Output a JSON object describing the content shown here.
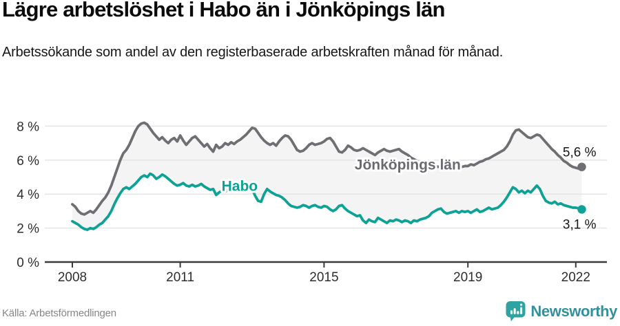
{
  "header": {
    "title": "Lägre arbetslöshet i Habo än i Jönköpings län",
    "subtitle": "Arbetssökande som andel av den registerbaserade arbetskraften månad för månad."
  },
  "footer": {
    "source": "Källa: Arbetsförmedlingen",
    "brand": "Newsworthy",
    "brand_icon": "newsworthy-bubble-bar-chart-icon",
    "brand_icon_color": "#2fa2a2",
    "brand_text_color": "#33919c"
  },
  "chart_data": {
    "type": "line",
    "title": "Lägre arbetslöshet i Habo än i Jönköpings län",
    "subtitle": "Arbetssökande som andel av den registerbaserade arbetskraften månad för månad.",
    "x_unit": "month",
    "x_range": {
      "start": "2008-01",
      "end": "2022-03"
    },
    "start_year": 2008,
    "ylim": [
      0,
      8.6
    ],
    "grid": "horizontal",
    "gridline_color": "#e2e2e2",
    "axis_color": "#3a3a3a",
    "fill_between_color": "#f4f4f4",
    "x_ticks": [
      {
        "label": "2008",
        "year": 2008
      },
      {
        "label": "2011",
        "year": 2011
      },
      {
        "label": "2015",
        "year": 2015
      },
      {
        "label": "2019",
        "year": 2019
      },
      {
        "label": "2022",
        "year": 2022
      }
    ],
    "y_ticks": [
      {
        "label": "0 %",
        "value": 0
      },
      {
        "label": "2 %",
        "value": 2
      },
      {
        "label": "4 %",
        "value": 4
      },
      {
        "label": "6 %",
        "value": 6
      },
      {
        "label": "8 %",
        "value": 8
      }
    ],
    "annotations": [
      {
        "text": "Habo",
        "year": 2012.15,
        "value": 4.2,
        "color": "#0da295"
      },
      {
        "text": "Jönköpings län",
        "year": 2015.85,
        "value": 5.45,
        "color": "#6b6a70"
      }
    ],
    "series": [
      {
        "name": "Jönköpings län",
        "color": "#6f6e73",
        "end_label": "5,6 %",
        "end_value": 5.6,
        "end_label_position": "above",
        "values": [
          3.4,
          3.25,
          3.0,
          2.85,
          2.8,
          2.9,
          3.0,
          2.9,
          3.1,
          3.35,
          3.6,
          3.8,
          4.1,
          4.5,
          5.0,
          5.5,
          6.0,
          6.4,
          6.6,
          6.9,
          7.3,
          7.7,
          8.0,
          8.15,
          8.2,
          8.1,
          7.85,
          7.6,
          7.4,
          7.2,
          7.35,
          7.15,
          7.0,
          7.2,
          7.3,
          7.1,
          7.45,
          7.15,
          6.9,
          7.1,
          7.3,
          7.4,
          7.2,
          7.0,
          6.8,
          6.95,
          6.7,
          6.5,
          6.9,
          6.7,
          6.8,
          7.0,
          6.9,
          7.05,
          6.95,
          7.1,
          7.2,
          7.35,
          7.5,
          7.7,
          7.9,
          7.85,
          7.6,
          7.35,
          7.15,
          7.0,
          6.9,
          7.0,
          6.85,
          7.1,
          7.3,
          7.45,
          7.4,
          7.2,
          6.9,
          6.6,
          6.5,
          6.55,
          6.7,
          6.9,
          7.0,
          6.9,
          6.95,
          7.0,
          7.1,
          7.25,
          7.3,
          7.1,
          6.8,
          6.5,
          6.45,
          6.6,
          6.85,
          6.75,
          6.6,
          6.55,
          6.6,
          6.7,
          6.6,
          6.5,
          6.4,
          6.3,
          6.45,
          6.55,
          6.65,
          6.55,
          6.5,
          6.55,
          6.6,
          6.65,
          6.5,
          6.4,
          6.3,
          6.15,
          6.05,
          5.95,
          5.85,
          5.75,
          5.7,
          5.75,
          5.75,
          5.65,
          5.6,
          5.65,
          5.75,
          5.65,
          5.6,
          5.7,
          5.8,
          5.7,
          5.6,
          5.65,
          5.65,
          5.75,
          5.7,
          5.8,
          5.9,
          5.95,
          6.05,
          6.1,
          6.2,
          6.3,
          6.4,
          6.5,
          6.6,
          6.8,
          7.1,
          7.5,
          7.75,
          7.8,
          7.65,
          7.5,
          7.35,
          7.3,
          7.4,
          7.5,
          7.45,
          7.25,
          7.05,
          6.85,
          6.65,
          6.5,
          6.3,
          6.15,
          5.95,
          5.85,
          5.7,
          5.6,
          5.55,
          5.5,
          5.6
        ]
      },
      {
        "name": "Habo",
        "color": "#0da295",
        "end_label": "3,1 %",
        "end_value": 3.1,
        "end_label_position": "below",
        "values": [
          2.4,
          2.3,
          2.2,
          2.05,
          1.95,
          1.9,
          2.0,
          1.95,
          2.05,
          2.2,
          2.3,
          2.5,
          2.7,
          3.0,
          3.4,
          3.75,
          4.05,
          4.3,
          4.4,
          4.3,
          4.45,
          4.6,
          4.8,
          5.0,
          5.1,
          5.0,
          5.2,
          5.1,
          4.9,
          5.0,
          5.15,
          5.05,
          4.9,
          4.75,
          4.6,
          4.5,
          4.55,
          4.65,
          4.5,
          4.45,
          4.55,
          4.45,
          4.5,
          4.6,
          4.45,
          4.35,
          4.25,
          4.3,
          3.95,
          4.1,
          4.2,
          4.15,
          4.25,
          4.2,
          4.3,
          4.25,
          4.35,
          4.3,
          4.4,
          4.35,
          4.3,
          3.9,
          3.6,
          3.55,
          4.0,
          4.3,
          4.15,
          4.05,
          3.95,
          3.9,
          3.8,
          3.65,
          3.45,
          3.3,
          3.25,
          3.2,
          3.25,
          3.35,
          3.3,
          3.2,
          3.3,
          3.35,
          3.25,
          3.2,
          3.3,
          3.25,
          3.1,
          3.0,
          3.1,
          3.3,
          3.35,
          3.15,
          3.0,
          2.9,
          2.8,
          2.7,
          2.75,
          2.45,
          2.3,
          2.5,
          2.4,
          2.35,
          2.6,
          2.5,
          2.4,
          2.3,
          2.45,
          2.4,
          2.5,
          2.45,
          2.35,
          2.45,
          2.4,
          2.3,
          2.45,
          2.4,
          2.5,
          2.55,
          2.6,
          2.7,
          2.9,
          3.0,
          3.1,
          3.15,
          2.95,
          2.85,
          2.9,
          2.95,
          3.0,
          2.9,
          3.0,
          2.95,
          3.0,
          2.9,
          3.0,
          3.1,
          2.95,
          3.0,
          3.1,
          3.2,
          3.1,
          3.15,
          3.2,
          3.35,
          3.55,
          3.8,
          4.1,
          4.4,
          4.3,
          4.1,
          4.2,
          4.05,
          4.2,
          4.1,
          4.3,
          4.5,
          4.3,
          3.9,
          3.6,
          3.5,
          3.45,
          3.55,
          3.4,
          3.45,
          3.35,
          3.3,
          3.25,
          3.2,
          3.2,
          3.15,
          3.1
        ]
      }
    ]
  }
}
